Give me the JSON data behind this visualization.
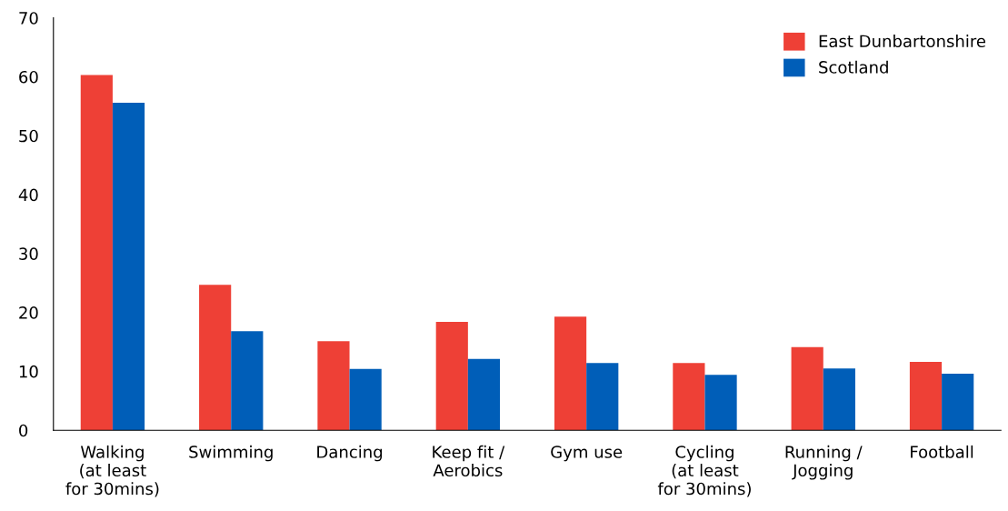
{
  "chart_data": {
    "type": "bar",
    "categories": [
      "Walking\n(at least\nfor 30mins)",
      "Swimming",
      "Dancing",
      "Keep fit /\nAerobics",
      "Gym use",
      "Cycling\n(at least\nfor 30mins)",
      "Running /\nJogging",
      "Football"
    ],
    "series": [
      {
        "name": "East Dunbartonshire",
        "color": "#ee4036",
        "values": [
          60.3,
          24.7,
          15.1,
          18.4,
          19.3,
          11.4,
          14.1,
          11.6
        ]
      },
      {
        "name": "Scotland",
        "color": "#005eb8",
        "values": [
          55.6,
          16.8,
          10.4,
          12.1,
          11.4,
          9.4,
          10.5,
          9.6
        ]
      }
    ],
    "ylim": [
      0,
      70
    ],
    "yticks": [
      0,
      10,
      20,
      30,
      40,
      50,
      60,
      70
    ],
    "grid": false,
    "legend": "top right"
  }
}
